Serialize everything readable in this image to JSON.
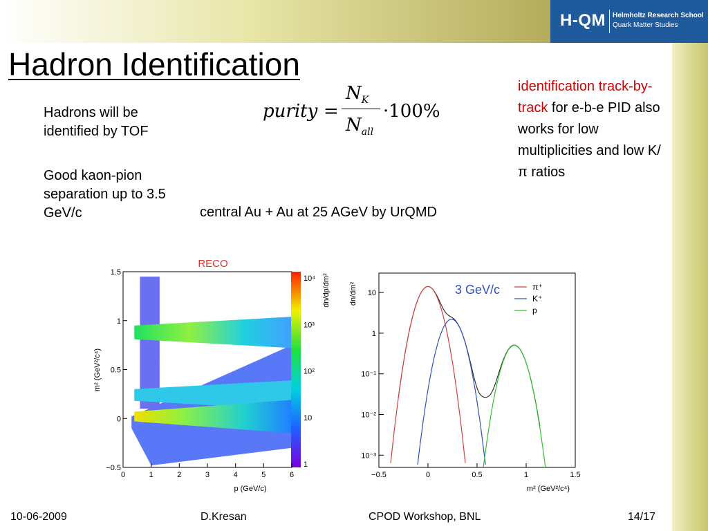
{
  "logo": {
    "main": "H-QM",
    "line1": "Helmholtz Research School",
    "line2": "Quark Matter Studies"
  },
  "slide": {
    "title": "Hadron Identification",
    "left_p1": "Hadrons will be identified by TOF",
    "left_p2": "Good kaon-pion separation up to 3.5 GeV/c",
    "right_red": "identification track-by-track",
    "right_rest": " for e-b-e PID also works for low multiplicities and low K/π ratios",
    "subtitle": "central Au + Au at 25 AGeV by UrQMD"
  },
  "formula": {
    "lhs": "purity",
    "num_main": "N",
    "num_sub": "K",
    "den_main": "N",
    "den_sub": "all",
    "times": "·100%"
  },
  "footer": {
    "date": "10-06-2009",
    "author": "D.Kresan",
    "event": "CPOD Workshop, BNL",
    "page": "14/17"
  },
  "colors": {
    "accent_red": "#d00000",
    "logo_blue": "#1e5a9c",
    "pion": "#d04040",
    "kaon": "#3050c0",
    "proton": "#30c030"
  },
  "chart_data": [
    {
      "type": "heatmap",
      "title": "RECO",
      "xlabel": "p (GeV/c)",
      "ylabel": "m² (GeV²/c⁴)",
      "colorbar_label": "dn/dp/dm²",
      "xlim": [
        0,
        6
      ],
      "ylim": [
        -0.5,
        1.5
      ],
      "x_ticks": [
        "0",
        "1",
        "2",
        "3",
        "4",
        "5",
        "6"
      ],
      "y_ticks": [
        "−0.5",
        "0",
        "0.5",
        "1",
        "1.5"
      ],
      "colorbar_ticks": [
        "1",
        "10",
        "10²",
        "10³",
        "10⁴"
      ],
      "bands": [
        {
          "name": "p",
          "m2": 0.88
        },
        {
          "name": "K",
          "m2": 0.24
        },
        {
          "name": "π",
          "m2": 0.02
        }
      ]
    },
    {
      "type": "line",
      "title": "3 GeV/c",
      "xlabel": "m² (GeV²/c⁴)",
      "ylabel": "dn/dm²",
      "log_y": true,
      "xlim": [
        -0.5,
        1.5
      ],
      "ylim": [
        0.0005,
        30
      ],
      "x_ticks": [
        "−0.5",
        "0",
        "0.5",
        "1",
        "1.5"
      ],
      "y_ticks": [
        "10⁻³",
        "10⁻²",
        "10⁻¹",
        "1",
        "10"
      ],
      "legend": [
        "π⁺",
        "K⁺",
        "p"
      ],
      "series": [
        {
          "name": "π⁺",
          "mu": 0.0,
          "sigma": 0.085,
          "amp": 14
        },
        {
          "name": "K⁺",
          "mu": 0.24,
          "sigma": 0.085,
          "amp": 2.2
        },
        {
          "name": "p",
          "mu": 0.88,
          "sigma": 0.085,
          "amp": 0.5
        }
      ]
    }
  ]
}
